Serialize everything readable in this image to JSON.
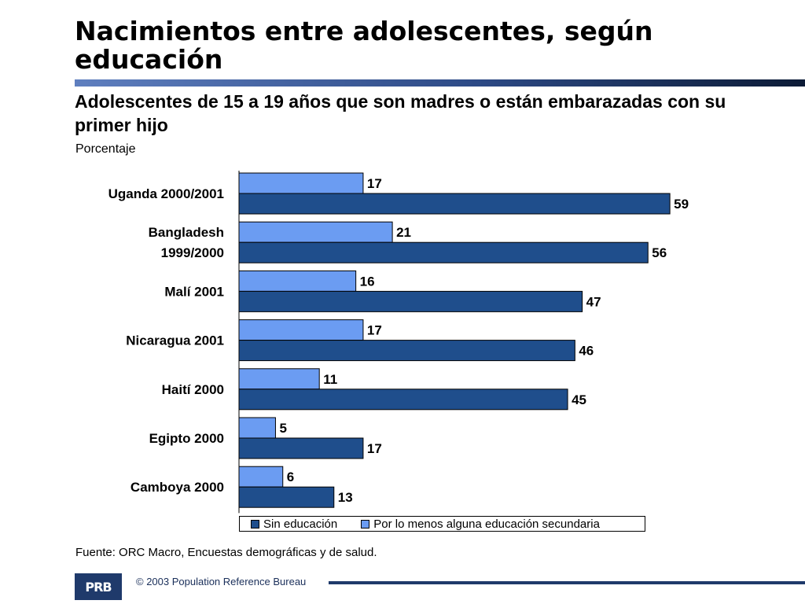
{
  "slide": {
    "title": "Nacimientos entre adolescentes, según educación",
    "subtitle": "Adolescentes de 15 a 19 años que son madres o están embarazadas con su primer hijo",
    "unit_label": "Porcentaje",
    "source": "Fuente: ORC Macro, Encuestas demográficas y de salud.",
    "copyright": "© 2003 Population Reference Bureau",
    "logo_text": "PRB"
  },
  "colors": {
    "sin_educacion": "#1f4e8c",
    "secundaria": "#6b9cf2",
    "accent_rule": "#2d4a86"
  },
  "chart_data": {
    "type": "bar",
    "orientation": "horizontal",
    "categories": [
      [
        "Uganda 2000/2001"
      ],
      [
        "Bangladesh",
        "1999/2000"
      ],
      [
        "Malí 2001"
      ],
      [
        "Nicaragua 2001"
      ],
      [
        "Haití 2000"
      ],
      [
        "Egipto 2000"
      ],
      [
        "Camboya 2000"
      ]
    ],
    "series": [
      {
        "name": "Por lo menos alguna educación secundaria",
        "values": [
          17,
          21,
          16,
          17,
          11,
          5,
          6
        ]
      },
      {
        "name": "Sin educación",
        "values": [
          59,
          56,
          47,
          46,
          45,
          17,
          13
        ]
      }
    ],
    "xlim": [
      0,
      62
    ],
    "grid": false,
    "legend": {
      "placement": "bottom",
      "entries": [
        "Sin educación",
        "Por lo menos alguna educación secundaria"
      ]
    }
  }
}
